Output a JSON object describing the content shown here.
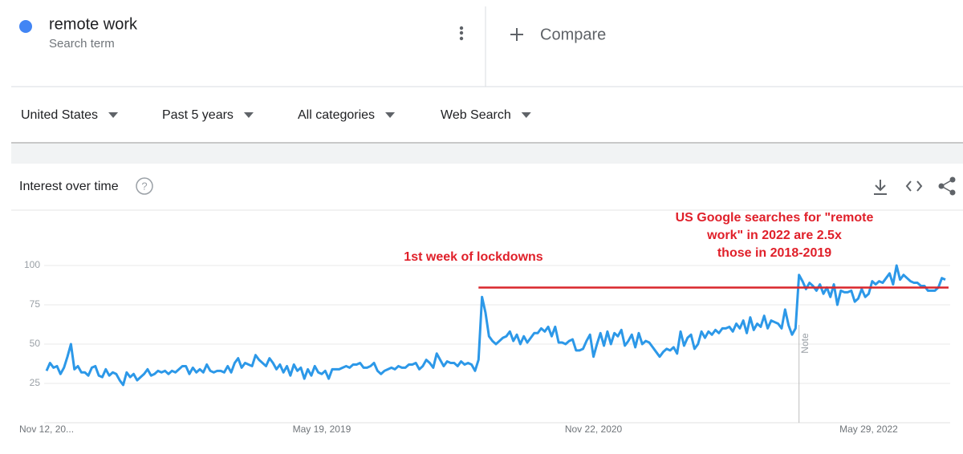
{
  "header": {
    "term": "remote work",
    "term_type": "Search term",
    "compare": "Compare"
  },
  "filters": [
    "United States",
    "Past 5 years",
    "All categories",
    "Web Search"
  ],
  "section_title": "Interest over time",
  "chart_data": {
    "type": "line",
    "categories": [
      "Nov 12, 20...",
      null,
      null,
      null,
      null,
      null,
      null,
      null,
      null,
      null,
      null,
      null,
      null,
      null,
      null,
      null,
      null,
      null,
      null,
      null,
      null,
      null,
      null,
      null,
      null,
      null,
      null,
      null,
      null,
      null,
      null,
      null,
      null,
      null,
      null,
      null,
      null,
      null,
      null,
      null,
      null,
      null,
      null,
      null,
      null,
      null,
      null,
      null,
      null,
      null,
      null,
      null,
      null,
      null,
      null,
      null,
      null,
      null,
      null,
      null,
      null,
      null,
      null,
      null,
      null,
      null,
      null,
      null,
      null,
      null,
      null,
      null,
      null,
      null,
      null,
      null,
      null,
      null,
      null,
      "May 19, 2019",
      null,
      null,
      null,
      null,
      null,
      null,
      null,
      null,
      null,
      null,
      null,
      null,
      null,
      null,
      null,
      null,
      null,
      null,
      null,
      null,
      null,
      null,
      null,
      null,
      null,
      null,
      null,
      null,
      null,
      null,
      null,
      null,
      null,
      null,
      null,
      null,
      null,
      null,
      null,
      null,
      null,
      null,
      null,
      null,
      null,
      null,
      null,
      null,
      null,
      null,
      null,
      null,
      null,
      null,
      null,
      null,
      null,
      null,
      null,
      null,
      null,
      null,
      null,
      null,
      null,
      null,
      null,
      null,
      null,
      null,
      null,
      null,
      null,
      null,
      null,
      null,
      null,
      "Nov 22, 2020",
      null,
      null,
      null,
      null,
      null,
      null,
      null,
      null,
      null,
      null,
      null,
      null,
      null,
      null,
      null,
      null,
      null,
      null,
      null,
      null,
      null,
      null,
      null,
      null,
      null,
      null,
      null,
      null,
      null,
      null,
      null,
      null,
      null,
      null,
      null,
      null,
      null,
      null,
      null,
      null,
      null,
      null,
      null,
      null,
      null,
      null,
      null,
      null,
      null,
      null,
      null,
      null,
      null,
      null,
      null,
      null,
      null,
      null,
      null,
      null,
      null,
      null,
      null,
      null,
      null,
      null,
      null,
      null,
      null,
      null,
      null,
      null,
      null,
      null,
      null,
      null,
      null,
      null,
      "May 29, 2022",
      null,
      null,
      null,
      null,
      null,
      null,
      null,
      null,
      null,
      null,
      null,
      null,
      null,
      null,
      null,
      null,
      null,
      null,
      null,
      null,
      null,
      null
    ],
    "series": [
      {
        "name": "remote work",
        "color": "#2c98e8",
        "values": [
          33,
          38,
          35,
          36,
          31,
          35,
          42,
          50,
          34,
          36,
          32,
          32,
          30,
          35,
          36,
          30,
          29,
          34,
          30,
          32,
          31,
          27,
          24,
          32,
          29,
          31,
          27,
          29,
          31,
          34,
          30,
          31,
          33,
          32,
          33,
          31,
          33,
          32,
          34,
          36,
          36,
          31,
          35,
          32,
          34,
          32,
          37,
          33,
          32,
          33,
          33,
          32,
          36,
          32,
          38,
          41,
          35,
          38,
          37,
          36,
          43,
          40,
          38,
          36,
          41,
          38,
          34,
          37,
          32,
          36,
          30,
          37,
          33,
          35,
          28,
          34,
          30,
          36,
          32,
          31,
          33,
          28,
          34,
          34,
          34,
          35,
          36,
          35,
          37,
          37,
          38,
          35,
          35,
          36,
          38,
          33,
          31,
          33,
          34,
          35,
          34,
          36,
          35,
          35,
          37,
          37,
          38,
          34,
          36,
          40,
          38,
          35,
          44,
          40,
          36,
          39,
          38,
          38,
          36,
          39,
          37,
          38,
          37,
          33,
          40,
          80,
          70,
          55,
          52,
          50,
          52,
          54,
          55,
          58,
          52,
          56,
          50,
          55,
          51,
          54,
          57,
          57,
          60,
          58,
          61,
          55,
          61,
          51,
          51,
          50,
          52,
          53,
          46,
          46,
          47,
          52,
          56,
          42,
          50,
          57,
          49,
          58,
          50,
          57,
          55,
          59,
          49,
          52,
          56,
          48,
          57,
          50,
          52,
          51,
          48,
          45,
          42,
          45,
          47,
          46,
          48,
          44,
          58,
          49,
          54,
          56,
          47,
          50,
          58,
          54,
          58,
          56,
          59,
          57,
          60,
          60,
          61,
          58,
          63,
          60,
          65,
          57,
          67,
          59,
          63,
          61,
          68,
          60,
          65,
          64,
          63,
          60,
          72,
          62,
          56,
          60,
          94,
          90,
          85,
          89,
          87,
          84,
          88,
          82,
          86,
          80,
          88,
          75,
          84,
          83,
          83,
          84,
          77,
          79,
          85,
          80,
          82,
          90,
          88,
          90,
          89,
          92,
          95,
          88,
          100,
          91,
          94,
          92,
          90,
          89,
          89,
          87,
          87,
          84,
          84,
          84,
          86,
          92,
          91
        ]
      }
    ],
    "ylim": [
      0,
      100
    ],
    "yticks": [
      25,
      50,
      75,
      100
    ],
    "grid": true,
    "reference_line": {
      "value": 86,
      "start": 124,
      "color": "#d9262c"
    },
    "note": {
      "label": "Note",
      "index": 216
    },
    "annotations": [
      {
        "text": "1st week of lockdowns",
        "color": "#e0202a"
      },
      {
        "lines": [
          "US Google searches for \"remote",
          "work\" in 2022 are 2.5x",
          "those in 2018-2019"
        ],
        "color": "#e0202a"
      }
    ]
  }
}
